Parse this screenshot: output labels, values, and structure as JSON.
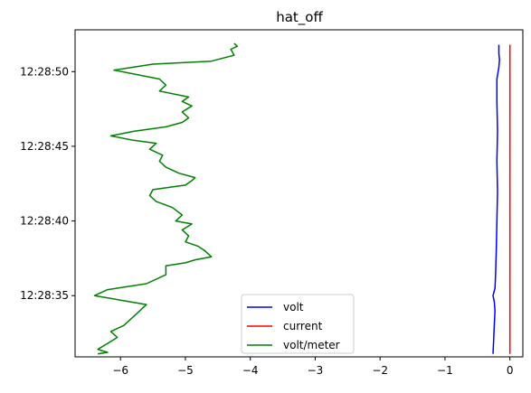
{
  "chart_data": {
    "type": "line",
    "title": "hat_off",
    "xlabel": "",
    "ylabel": "",
    "xlim": [
      -6.7,
      0.2
    ],
    "ylim": [
      "12:28:30.9",
      "12:28:52.8"
    ],
    "x_ticks": [
      -6,
      -5,
      -4,
      -3,
      -2,
      -1,
      0
    ],
    "x_tick_labels": [
      "−6",
      "−5",
      "−4",
      "−3",
      "−2",
      "−1",
      "0"
    ],
    "y_ticks": [
      "12:28:35",
      "12:28:40",
      "12:28:45",
      "12:28:50"
    ],
    "y_tick_labels": [
      "12:28:35",
      "12:28:40",
      "12:28:45",
      "12:28:50"
    ],
    "grid": false,
    "legend_position": "lower center",
    "series": [
      {
        "name": "volt",
        "color": "#0000ff",
        "points": [
          [
            -0.26,
            "12:28:31.1"
          ],
          [
            -0.25,
            "12:28:32.0"
          ],
          [
            -0.24,
            "12:28:33.0"
          ],
          [
            -0.23,
            "12:28:34.0"
          ],
          [
            -0.24,
            "12:28:34.6"
          ],
          [
            -0.26,
            "12:28:35.0"
          ],
          [
            -0.23,
            "12:28:35.5"
          ],
          [
            -0.22,
            "12:28:36.5"
          ],
          [
            -0.21,
            "12:28:38.0"
          ],
          [
            -0.2,
            "12:28:40.0"
          ],
          [
            -0.19,
            "12:28:42.0"
          ],
          [
            -0.2,
            "12:28:44.0"
          ],
          [
            -0.19,
            "12:28:46.0"
          ],
          [
            -0.2,
            "12:28:48.0"
          ],
          [
            -0.2,
            "12:28:49.5"
          ],
          [
            -0.17,
            "12:28:50.3"
          ],
          [
            -0.16,
            "12:28:50.8"
          ],
          [
            -0.17,
            "12:28:51.2"
          ],
          [
            -0.17,
            "12:28:51.8"
          ]
        ]
      },
      {
        "name": "current",
        "color": "#ff0000",
        "points": [
          [
            0.0,
            "12:28:31.1"
          ],
          [
            0.0,
            "12:28:51.8"
          ]
        ]
      },
      {
        "name": "volt/meter",
        "color": "#008000",
        "points": [
          [
            -6.35,
            "12:28:31.1"
          ],
          [
            -6.2,
            "12:28:31.2"
          ],
          [
            -6.35,
            "12:28:31.4"
          ],
          [
            -6.2,
            "12:28:31.8"
          ],
          [
            -6.05,
            "12:28:32.2"
          ],
          [
            -6.15,
            "12:28:32.6"
          ],
          [
            -5.95,
            "12:28:33.0"
          ],
          [
            -5.85,
            "12:28:33.4"
          ],
          [
            -5.75,
            "12:28:33.8"
          ],
          [
            -5.6,
            "12:28:34.4"
          ],
          [
            -6.0,
            "12:28:34.7"
          ],
          [
            -6.4,
            "12:28:35.0"
          ],
          [
            -6.2,
            "12:28:35.4"
          ],
          [
            -5.6,
            "12:28:35.8"
          ],
          [
            -5.3,
            "12:28:36.4"
          ],
          [
            -5.3,
            "12:28:37.0"
          ],
          [
            -5.0,
            "12:28:37.2"
          ],
          [
            -4.85,
            "12:28:37.4"
          ],
          [
            -4.6,
            "12:28:37.6"
          ],
          [
            -4.7,
            "12:28:38.0"
          ],
          [
            -4.8,
            "12:28:38.3"
          ],
          [
            -5.0,
            "12:28:38.6"
          ],
          [
            -4.95,
            "12:28:39.0"
          ],
          [
            -5.05,
            "12:28:39.4"
          ],
          [
            -4.9,
            "12:28:39.8"
          ],
          [
            -5.15,
            "12:28:40.0"
          ],
          [
            -5.05,
            "12:28:40.4"
          ],
          [
            -5.2,
            "12:28:40.9"
          ],
          [
            -5.45,
            "12:28:41.3"
          ],
          [
            -5.55,
            "12:28:41.7"
          ],
          [
            -5.5,
            "12:28:42.1"
          ],
          [
            -5.0,
            "12:28:42.4"
          ],
          [
            -4.9,
            "12:28:42.7"
          ],
          [
            -4.85,
            "12:28:42.9"
          ],
          [
            -5.1,
            "12:28:43.2"
          ],
          [
            -5.3,
            "12:28:43.6"
          ],
          [
            -5.4,
            "12:28:44.0"
          ],
          [
            -5.35,
            "12:28:44.4"
          ],
          [
            -5.55,
            "12:28:44.8"
          ],
          [
            -5.45,
            "12:28:45.2"
          ],
          [
            -5.8,
            "12:28:45.4"
          ],
          [
            -6.15,
            "12:28:45.7"
          ],
          [
            -5.8,
            "12:28:46.0"
          ],
          [
            -5.3,
            "12:28:46.3"
          ],
          [
            -5.05,
            "12:28:46.6"
          ],
          [
            -4.95,
            "12:28:46.9"
          ],
          [
            -5.05,
            "12:28:47.3"
          ],
          [
            -4.9,
            "12:28:47.7"
          ],
          [
            -5.05,
            "12:28:48.0"
          ],
          [
            -4.95,
            "12:28:48.3"
          ],
          [
            -5.4,
            "12:28:48.7"
          ],
          [
            -5.3,
            "12:28:49.1"
          ],
          [
            -5.4,
            "12:28:49.5"
          ],
          [
            -6.1,
            "12:28:50.1"
          ],
          [
            -5.5,
            "12:28:50.5"
          ],
          [
            -4.6,
            "12:28:50.7"
          ],
          [
            -4.25,
            "12:28:51.1"
          ],
          [
            -4.3,
            "12:28:51.5"
          ],
          [
            -4.2,
            "12:28:51.7"
          ],
          [
            -4.25,
            "12:28:51.9"
          ]
        ]
      }
    ]
  }
}
